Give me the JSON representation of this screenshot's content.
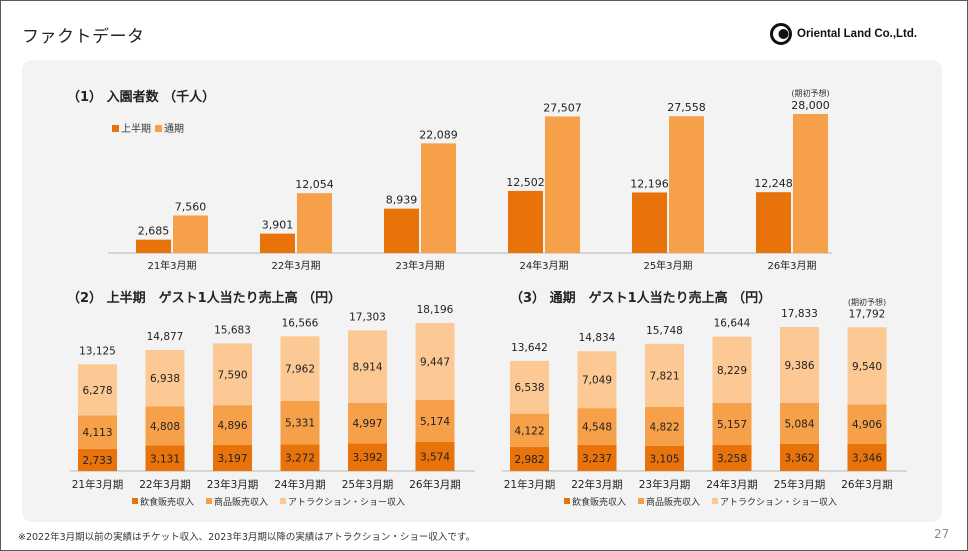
{
  "header": {
    "title": "ファクトデータ",
    "logo_text": "Oriental Land Co.,Ltd."
  },
  "footer": {
    "note": "※2022年3月期以前の実績はチケット収入、2023年3月期以降の実績はアトラクション・ショー収入です。",
    "page_number": "27"
  },
  "colors": {
    "dark_orange": "#e8730a",
    "mid_orange": "#f6a04a",
    "light_orange": "#fcc994",
    "panel": "#f3f3f3"
  },
  "chart_data": [
    {
      "type": "bar",
      "title": "（1） 入園者数 （千人）",
      "categories": [
        "21年3月期",
        "22年3月期",
        "23年3月期",
        "24年3月期",
        "25年3月期",
        "26年3月期"
      ],
      "series": [
        {
          "name": "上半期",
          "values": [
            2685,
            3901,
            8939,
            12502,
            12196,
            12248
          ],
          "labels": [
            "2,685",
            "3,901",
            "8,939",
            "12,502",
            "12,196",
            "12,248"
          ]
        },
        {
          "name": "通期",
          "values": [
            7560,
            12054,
            22089,
            27507,
            27558,
            28000
          ],
          "labels": [
            "7,560",
            "12,054",
            "22,089",
            "27,507",
            "27,558",
            "28,000"
          ]
        }
      ],
      "annotation": "(期初予想)",
      "ylim": [
        0,
        28000
      ]
    },
    {
      "type": "bar",
      "stacked": true,
      "title": "（2） 上半期　ゲスト1人当たり売上高 （円）",
      "categories": [
        "21年3月期",
        "22年3月期",
        "23年3月期",
        "24年3月期",
        "25年3月期",
        "26年3月期"
      ],
      "series": [
        {
          "name": "飲食販売収入",
          "values": [
            2733,
            3131,
            3197,
            3272,
            3392,
            3574
          ],
          "labels": [
            "2,733",
            "3,131",
            "3,197",
            "3,272",
            "3,392",
            "3,574"
          ]
        },
        {
          "name": "商品販売収入",
          "values": [
            4113,
            4808,
            4896,
            5331,
            4997,
            5174
          ],
          "labels": [
            "4,113",
            "4,808",
            "4,896",
            "5,331",
            "4,997",
            "5,174"
          ]
        },
        {
          "name": "アトラクション・ショー収入",
          "values": [
            6278,
            6938,
            7590,
            7962,
            8914,
            9447
          ],
          "labels": [
            "6,278",
            "6,938",
            "7,590",
            "7,962",
            "8,914",
            "9,447"
          ]
        }
      ],
      "totals": [
        13125,
        14877,
        15683,
        16566,
        17303,
        18196
      ],
      "total_labels": [
        "13,125",
        "14,877",
        "15,683",
        "16,566",
        "17,303",
        "18,196"
      ],
      "ylim": [
        0,
        18196
      ]
    },
    {
      "type": "bar",
      "stacked": true,
      "title": "（3） 通期　ゲスト1人当たり売上高 （円）",
      "categories": [
        "21年3月期",
        "22年3月期",
        "23年3月期",
        "24年3月期",
        "25年3月期",
        "26年3月期"
      ],
      "series": [
        {
          "name": "飲食販売収入",
          "values": [
            2982,
            3237,
            3105,
            3258,
            3362,
            3346
          ],
          "labels": [
            "2,982",
            "3,237",
            "3,105",
            "3,258",
            "3,362",
            "3,346"
          ]
        },
        {
          "name": "商品販売収入",
          "values": [
            4122,
            4548,
            4822,
            5157,
            5084,
            4906
          ],
          "labels": [
            "4,122",
            "4,548",
            "4,822",
            "5,157",
            "5,084",
            "4,906"
          ]
        },
        {
          "name": "アトラクション・ショー収入",
          "values": [
            6538,
            7049,
            7821,
            8229,
            9386,
            9540
          ],
          "labels": [
            "6,538",
            "7,049",
            "7,821",
            "8,229",
            "9,386",
            "9,540"
          ]
        }
      ],
      "totals": [
        13642,
        14834,
        15748,
        16644,
        17833,
        17792
      ],
      "total_labels": [
        "13,642",
        "14,834",
        "15,748",
        "16,644",
        "17,833",
        "17,792"
      ],
      "annotation": "(期初予想)",
      "ylim": [
        0,
        17833
      ]
    }
  ]
}
